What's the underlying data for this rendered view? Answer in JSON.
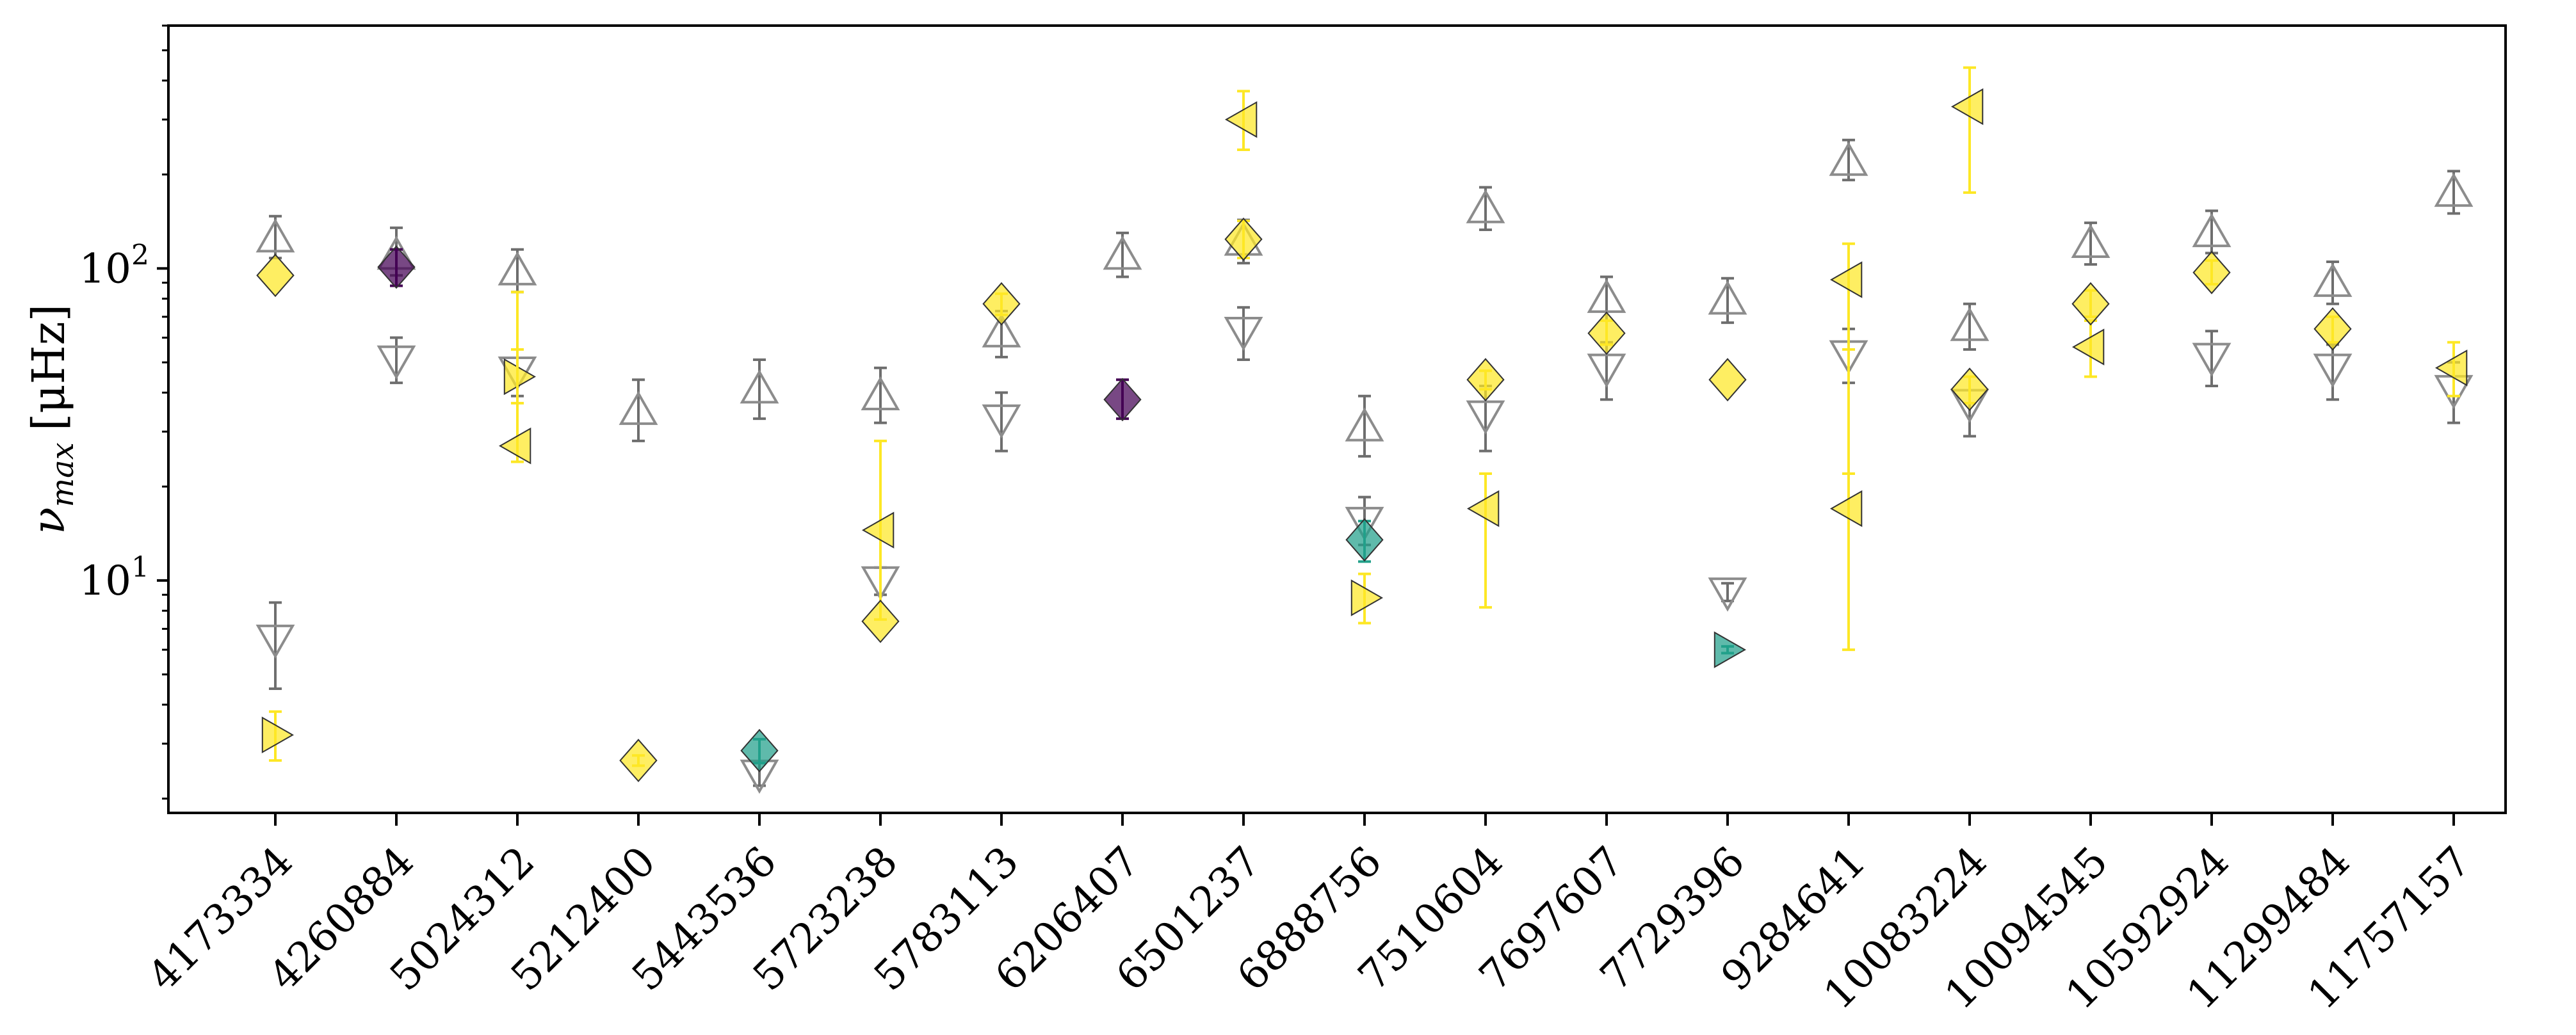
{
  "chart_data": {
    "type": "scatter",
    "title": "",
    "xlabel": "",
    "ylabel": "ν",
    "ylabel_sub": "max",
    "ylabel_unit": "[μHz]",
    "yscale": "log",
    "ylim": [
      1.8,
      600
    ],
    "y_ticks": [
      {
        "value": 10,
        "base": "10",
        "exp": "1"
      },
      {
        "value": 100,
        "base": "10",
        "exp": "2"
      }
    ],
    "categories": [
      "4173334",
      "4260884",
      "5024312",
      "5212400",
      "5443536",
      "5723238",
      "5783113",
      "6206407",
      "6501237",
      "6888756",
      "7510604",
      "7697607",
      "7729396",
      "9284641",
      "10083224",
      "10094545",
      "10592924",
      "11299484",
      "11757157"
    ],
    "colors": {
      "yellow": "#fde725",
      "teal": "#21a08a",
      "purple": "#440154",
      "gray": "#8c8c8c"
    },
    "series": [
      {
        "name": "gray-up-triangle",
        "marker": "up",
        "color": "gray",
        "points": [
          {
            "i": 0,
            "y": 125,
            "lo": 108,
            "hi": 147
          },
          {
            "i": 1,
            "y": 110,
            "lo": 95,
            "hi": 135
          },
          {
            "i": 2,
            "y": 98,
            "lo": 84,
            "hi": 115
          },
          {
            "i": 3,
            "y": 35,
            "lo": 28,
            "hi": 44
          },
          {
            "i": 4,
            "y": 41,
            "lo": 33,
            "hi": 51
          },
          {
            "i": 5,
            "y": 39,
            "lo": 32,
            "hi": 48
          },
          {
            "i": 6,
            "y": 62,
            "lo": 52,
            "hi": 73
          },
          {
            "i": 7,
            "y": 110,
            "lo": 94,
            "hi": 130
          },
          {
            "i": 8,
            "y": 122,
            "lo": 104,
            "hi": 143
          },
          {
            "i": 9,
            "y": 31,
            "lo": 25,
            "hi": 39
          },
          {
            "i": 10,
            "y": 155,
            "lo": 133,
            "hi": 182
          },
          {
            "i": 11,
            "y": 80,
            "lo": 68,
            "hi": 94
          },
          {
            "i": 12,
            "y": 79,
            "lo": 67,
            "hi": 93
          },
          {
            "i": 13,
            "y": 220,
            "lo": 192,
            "hi": 258
          },
          {
            "i": 14,
            "y": 65,
            "lo": 55,
            "hi": 77
          },
          {
            "i": 15,
            "y": 120,
            "lo": 103,
            "hi": 140
          },
          {
            "i": 16,
            "y": 130,
            "lo": 112,
            "hi": 153
          },
          {
            "i": 17,
            "y": 90,
            "lo": 77,
            "hi": 105
          },
          {
            "i": 18,
            "y": 175,
            "lo": 150,
            "hi": 205
          }
        ]
      },
      {
        "name": "gray-down-triangle",
        "marker": "down",
        "color": "gray",
        "points": [
          {
            "i": 0,
            "y": 6.5,
            "lo": 4.5,
            "hi": 8.5
          },
          {
            "i": 1,
            "y": 51,
            "lo": 43,
            "hi": 60
          },
          {
            "i": 2,
            "y": 47,
            "lo": 39,
            "hi": 55
          },
          {
            "i": 4,
            "y": 2.4,
            "lo": 2.2,
            "hi": 2.6
          },
          {
            "i": 5,
            "y": 10,
            "lo": 9,
            "hi": 11
          },
          {
            "i": 6,
            "y": 33,
            "lo": 26,
            "hi": 40
          },
          {
            "i": 8,
            "y": 63,
            "lo": 51,
            "hi": 75
          },
          {
            "i": 9,
            "y": 15.5,
            "lo": 13,
            "hi": 18.5
          },
          {
            "i": 10,
            "y": 34,
            "lo": 26,
            "hi": 42
          },
          {
            "i": 11,
            "y": 48,
            "lo": 38,
            "hi": 58
          },
          {
            "i": 12,
            "y": 9.2,
            "lo": 8.6,
            "hi": 9.8
          },
          {
            "i": 13,
            "y": 53,
            "lo": 43,
            "hi": 64
          },
          {
            "i": 14,
            "y": 37,
            "lo": 29,
            "hi": 45
          },
          {
            "i": 16,
            "y": 52,
            "lo": 42,
            "hi": 63
          },
          {
            "i": 17,
            "y": 48,
            "lo": 38,
            "hi": 57
          },
          {
            "i": 18,
            "y": 41,
            "lo": 32,
            "hi": 50
          }
        ]
      },
      {
        "name": "right-triangle",
        "marker": "right",
        "points": [
          {
            "i": 0,
            "y": 3.2,
            "lo": 2.65,
            "hi": 3.8,
            "color": "yellow"
          },
          {
            "i": 2,
            "y": 45,
            "lo": 37,
            "hi": 55,
            "color": "yellow"
          },
          {
            "i": 9,
            "y": 8.8,
            "lo": 7.3,
            "hi": 10.5,
            "color": "yellow"
          },
          {
            "i": 12,
            "y": 6.0,
            "lo": 5.85,
            "hi": 6.15,
            "color": "teal"
          }
        ]
      },
      {
        "name": "left-triangle",
        "marker": "left",
        "points": [
          {
            "i": 2,
            "y": 27,
            "lo": 24,
            "hi": 84,
            "color": "yellow"
          },
          {
            "i": 5,
            "y": 14.5,
            "lo": 7.5,
            "hi": 28,
            "color": "yellow"
          },
          {
            "i": 8,
            "y": 300,
            "lo": 240,
            "hi": 370,
            "color": "yellow"
          },
          {
            "i": 10,
            "y": 17,
            "lo": 8.2,
            "hi": 22,
            "color": "yellow"
          },
          {
            "i": 13,
            "y": 92,
            "lo": 22,
            "hi": 120,
            "color": "yellow"
          },
          {
            "i": 13,
            "y": 17,
            "lo": 6,
            "hi": 55,
            "color": "yellow"
          },
          {
            "i": 14,
            "y": 330,
            "lo": 175,
            "hi": 440,
            "color": "yellow"
          },
          {
            "i": 15,
            "y": 56,
            "lo": 45,
            "hi": 68,
            "color": "yellow"
          },
          {
            "i": 18,
            "y": 48,
            "lo": 39,
            "hi": 58,
            "color": "yellow"
          }
        ]
      },
      {
        "name": "diamond",
        "marker": "diamond",
        "points": [
          {
            "i": 0,
            "y": 95,
            "color": "yellow"
          },
          {
            "i": 1,
            "y": 101,
            "lo": 88,
            "hi": 115,
            "color": "purple"
          },
          {
            "i": 3,
            "y": 2.65,
            "lo": 2.55,
            "hi": 2.75,
            "color": "yellow"
          },
          {
            "i": 4,
            "y": 2.85,
            "lo": 2.6,
            "hi": 3.1,
            "color": "teal"
          },
          {
            "i": 5,
            "y": 7.4,
            "color": "yellow"
          },
          {
            "i": 6,
            "y": 77,
            "lo": 71,
            "hi": 83,
            "color": "yellow"
          },
          {
            "i": 7,
            "y": 38,
            "lo": 33,
            "hi": 44,
            "color": "purple"
          },
          {
            "i": 8,
            "y": 124,
            "lo": 108,
            "hi": 142,
            "color": "yellow"
          },
          {
            "i": 9,
            "y": 13.5,
            "lo": 11.5,
            "hi": 15.5,
            "color": "teal"
          },
          {
            "i": 10,
            "y": 44,
            "lo": 41,
            "hi": 47,
            "color": "yellow"
          },
          {
            "i": 11,
            "y": 62,
            "lo": 57,
            "hi": 68,
            "color": "yellow"
          },
          {
            "i": 12,
            "y": 44,
            "color": "yellow"
          },
          {
            "i": 14,
            "y": 41,
            "lo": 37,
            "hi": 45,
            "color": "yellow"
          },
          {
            "i": 15,
            "y": 77,
            "lo": 70,
            "hi": 85,
            "color": "yellow"
          },
          {
            "i": 16,
            "y": 97,
            "lo": 89,
            "hi": 106,
            "color": "yellow"
          },
          {
            "i": 17,
            "y": 64,
            "lo": 58,
            "hi": 70,
            "color": "yellow"
          }
        ]
      }
    ]
  }
}
